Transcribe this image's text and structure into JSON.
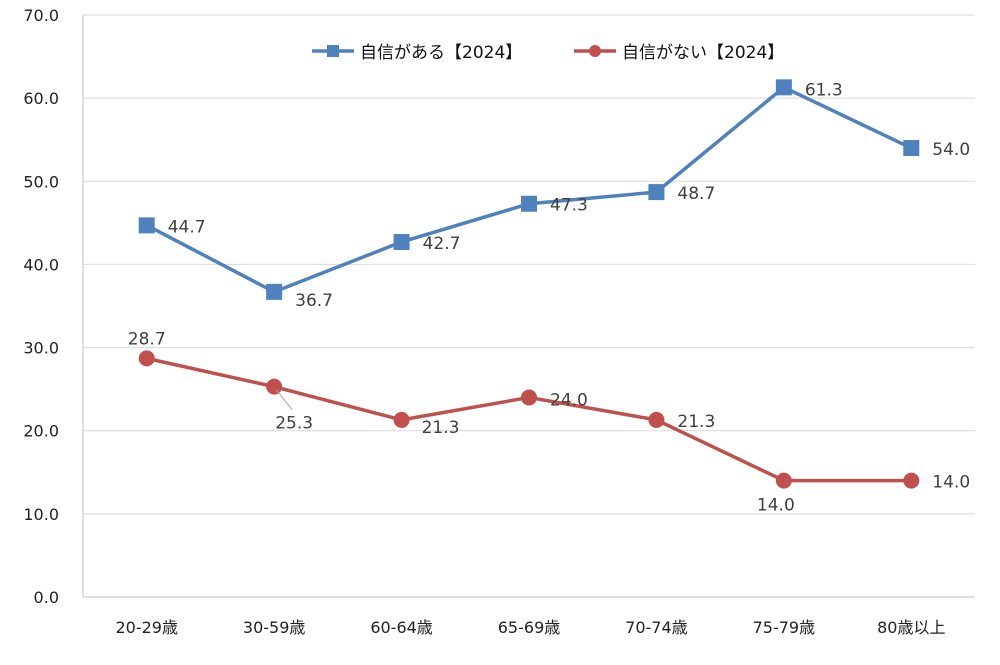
{
  "chart_data": {
    "type": "line",
    "categories": [
      "20-29歳",
      "30-59歳",
      "60-64歳",
      "65-69歳",
      "70-74歳",
      "75-79歳",
      "80歳以上"
    ],
    "series": [
      {
        "name": "自信がある【2024】",
        "values": [
          44.7,
          36.7,
          42.7,
          47.3,
          48.7,
          61.3,
          54.0
        ],
        "color": "#4F81BD",
        "marker": "square"
      },
      {
        "name": "自信がない【2024】",
        "values": [
          28.7,
          25.3,
          21.3,
          24.0,
          21.3,
          14.0,
          14.0
        ],
        "color": "#C0504D",
        "marker": "circle"
      }
    ],
    "ylim": [
      0,
      70
    ],
    "yticks": [
      "0.0",
      "10.0",
      "20.0",
      "30.0",
      "40.0",
      "50.0",
      "60.0",
      "70.0"
    ],
    "grid": true,
    "legend": "top-center",
    "data_labels": true
  }
}
